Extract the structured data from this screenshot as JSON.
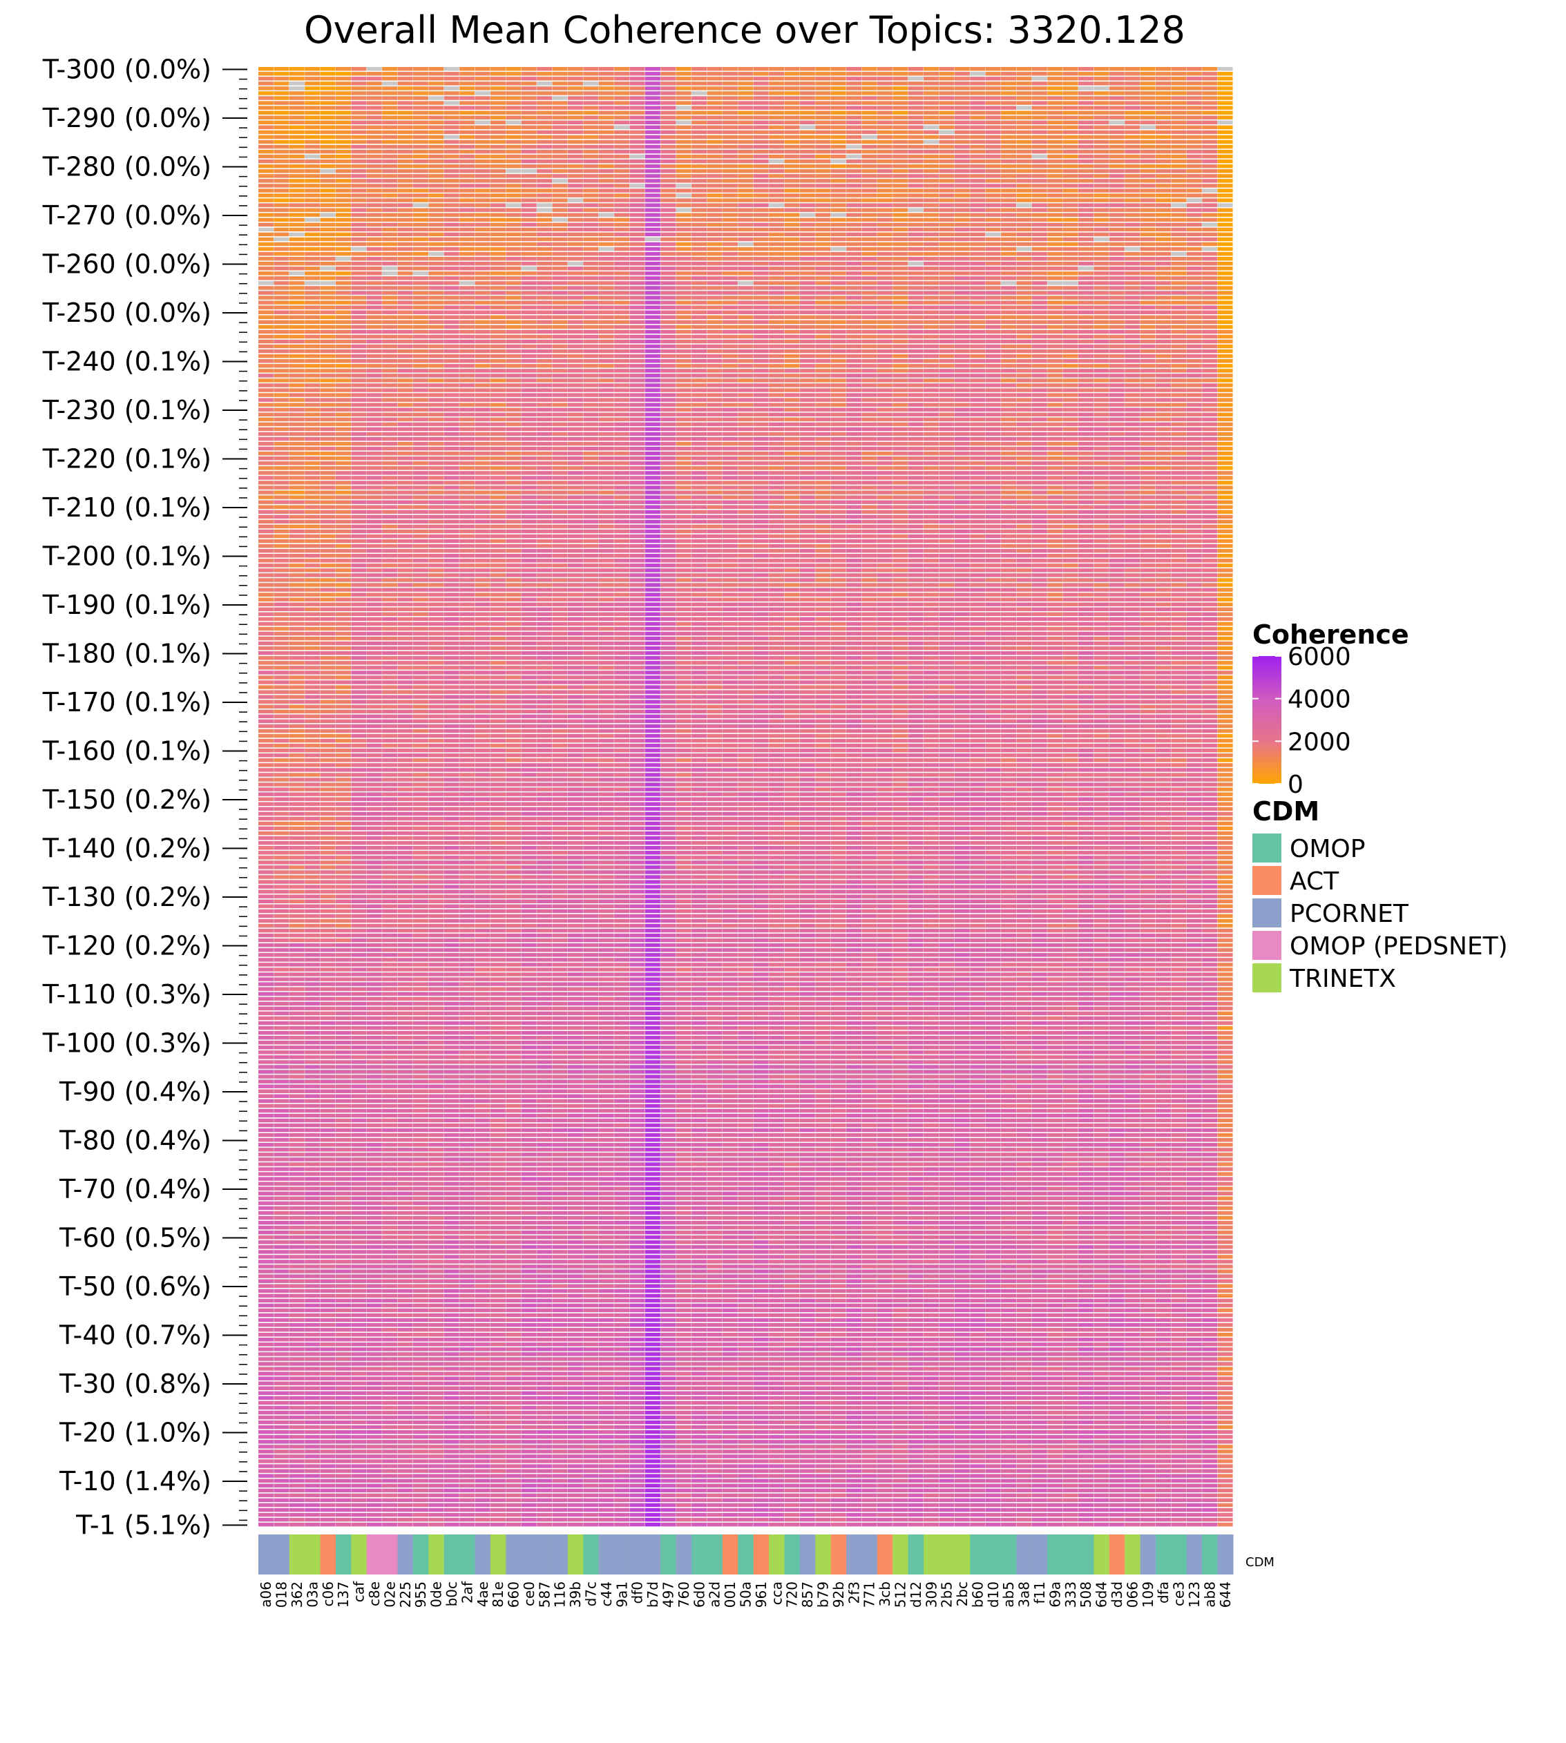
{
  "chart_data": {
    "type": "heatmap",
    "title": "Overall Mean Coherence over Topics: 3320.128",
    "row_labels": [
      {
        "topic": 300,
        "label": "T-300 (0.0%)"
      },
      {
        "topic": 290,
        "label": "T-290 (0.0%)"
      },
      {
        "topic": 280,
        "label": "T-280 (0.0%)"
      },
      {
        "topic": 270,
        "label": "T-270 (0.0%)"
      },
      {
        "topic": 260,
        "label": "T-260 (0.0%)"
      },
      {
        "topic": 250,
        "label": "T-250 (0.0%)"
      },
      {
        "topic": 240,
        "label": "T-240 (0.1%)"
      },
      {
        "topic": 230,
        "label": "T-230 (0.1%)"
      },
      {
        "topic": 220,
        "label": "T-220 (0.1%)"
      },
      {
        "topic": 210,
        "label": "T-210 (0.1%)"
      },
      {
        "topic": 200,
        "label": "T-200 (0.1%)"
      },
      {
        "topic": 190,
        "label": "T-190 (0.1%)"
      },
      {
        "topic": 180,
        "label": "T-180 (0.1%)"
      },
      {
        "topic": 170,
        "label": "T-170 (0.1%)"
      },
      {
        "topic": 160,
        "label": "T-160 (0.1%)"
      },
      {
        "topic": 150,
        "label": "T-150 (0.2%)"
      },
      {
        "topic": 140,
        "label": "T-140 (0.2%)"
      },
      {
        "topic": 130,
        "label": "T-130 (0.2%)"
      },
      {
        "topic": 120,
        "label": "T-120 (0.2%)"
      },
      {
        "topic": 110,
        "label": "T-110 (0.3%)"
      },
      {
        "topic": 100,
        "label": "T-100 (0.3%)"
      },
      {
        "topic": 90,
        "label": "T-90 (0.4%)"
      },
      {
        "topic": 80,
        "label": "T-80 (0.4%)"
      },
      {
        "topic": 70,
        "label": "T-70 (0.4%)"
      },
      {
        "topic": 60,
        "label": "T-60 (0.5%)"
      },
      {
        "topic": 50,
        "label": "T-50 (0.6%)"
      },
      {
        "topic": 40,
        "label": "T-40 (0.7%)"
      },
      {
        "topic": 30,
        "label": "T-30 (0.8%)"
      },
      {
        "topic": 20,
        "label": "T-20 (1.0%)"
      },
      {
        "topic": 10,
        "label": "T-10 (1.4%)"
      },
      {
        "topic": 1,
        "label": "T-1 (5.1%)"
      }
    ],
    "topic_range": [
      1,
      300
    ],
    "columns": [
      {
        "label": "a06",
        "cdm": "PCORNET"
      },
      {
        "label": "018",
        "cdm": "PCORNET"
      },
      {
        "label": "362",
        "cdm": "TRINETX"
      },
      {
        "label": "03a",
        "cdm": "TRINETX"
      },
      {
        "label": "c06",
        "cdm": "ACT"
      },
      {
        "label": "137",
        "cdm": "OMOP"
      },
      {
        "label": "caf",
        "cdm": "TRINETX"
      },
      {
        "label": "c8e",
        "cdm": "OMOP (PEDSNET)"
      },
      {
        "label": "02e",
        "cdm": "OMOP (PEDSNET)"
      },
      {
        "label": "225",
        "cdm": "PCORNET"
      },
      {
        "label": "955",
        "cdm": "OMOP"
      },
      {
        "label": "0de",
        "cdm": "TRINETX"
      },
      {
        "label": "b0c",
        "cdm": "OMOP"
      },
      {
        "label": "2af",
        "cdm": "OMOP"
      },
      {
        "label": "4ae",
        "cdm": "PCORNET"
      },
      {
        "label": "81e",
        "cdm": "TRINETX"
      },
      {
        "label": "660",
        "cdm": "PCORNET"
      },
      {
        "label": "ce0",
        "cdm": "PCORNET"
      },
      {
        "label": "587",
        "cdm": "PCORNET"
      },
      {
        "label": "116",
        "cdm": "PCORNET"
      },
      {
        "label": "39b",
        "cdm": "TRINETX"
      },
      {
        "label": "d7c",
        "cdm": "OMOP"
      },
      {
        "label": "c44",
        "cdm": "PCORNET"
      },
      {
        "label": "9a1",
        "cdm": "PCORNET"
      },
      {
        "label": "df0",
        "cdm": "PCORNET"
      },
      {
        "label": "b7d",
        "cdm": "PCORNET"
      },
      {
        "label": "497",
        "cdm": "OMOP"
      },
      {
        "label": "760",
        "cdm": "PCORNET"
      },
      {
        "label": "6d0",
        "cdm": "OMOP"
      },
      {
        "label": "a2d",
        "cdm": "OMOP"
      },
      {
        "label": "001",
        "cdm": "ACT"
      },
      {
        "label": "50a",
        "cdm": "OMOP"
      },
      {
        "label": "961",
        "cdm": "ACT"
      },
      {
        "label": "cca",
        "cdm": "TRINETX"
      },
      {
        "label": "720",
        "cdm": "OMOP"
      },
      {
        "label": "857",
        "cdm": "PCORNET"
      },
      {
        "label": "b79",
        "cdm": "TRINETX"
      },
      {
        "label": "92b",
        "cdm": "ACT"
      },
      {
        "label": "2f3",
        "cdm": "PCORNET"
      },
      {
        "label": "771",
        "cdm": "PCORNET"
      },
      {
        "label": "3cb",
        "cdm": "ACT"
      },
      {
        "label": "512",
        "cdm": "TRINETX"
      },
      {
        "label": "d12",
        "cdm": "OMOP"
      },
      {
        "label": "309",
        "cdm": "TRINETX"
      },
      {
        "label": "2b5",
        "cdm": "TRINETX"
      },
      {
        "label": "2bc",
        "cdm": "TRINETX"
      },
      {
        "label": "b60",
        "cdm": "OMOP"
      },
      {
        "label": "d10",
        "cdm": "OMOP"
      },
      {
        "label": "ab5",
        "cdm": "OMOP"
      },
      {
        "label": "3a8",
        "cdm": "PCORNET"
      },
      {
        "label": "f11",
        "cdm": "PCORNET"
      },
      {
        "label": "69a",
        "cdm": "OMOP"
      },
      {
        "label": "333",
        "cdm": "OMOP"
      },
      {
        "label": "508",
        "cdm": "OMOP"
      },
      {
        "label": "6d4",
        "cdm": "TRINETX"
      },
      {
        "label": "d3d",
        "cdm": "ACT"
      },
      {
        "label": "066",
        "cdm": "TRINETX"
      },
      {
        "label": "109",
        "cdm": "PCORNET"
      },
      {
        "label": "dfa",
        "cdm": "OMOP"
      },
      {
        "label": "ce3",
        "cdm": "OMOP"
      },
      {
        "label": "123",
        "cdm": "PCORNET"
      },
      {
        "label": "ab8",
        "cdm": "OMOP"
      },
      {
        "label": "644",
        "cdm": "PCORNET"
      }
    ],
    "value_estimates": {
      "overall_mean": 3320.128,
      "typical_low_topics": 3200,
      "typical_high_topics": 1200,
      "peak_column": "b7d",
      "peak_value": 5500,
      "missing_color": "#c8c8c8"
    },
    "colorbar": {
      "title": "Coherence",
      "min": 0,
      "max": 6000,
      "ticks": [
        0,
        2000,
        4000,
        6000
      ],
      "tick_labels": [
        "0",
        "2000",
        "4000",
        "6000"
      ],
      "colors": [
        "#FFA500",
        "#E8758A",
        "#D05BC0",
        "#A020F0"
      ]
    },
    "cdm_annotation_label": "CDM",
    "legend": {
      "title": "CDM",
      "placement": "right",
      "items": [
        {
          "name": "OMOP",
          "color": "#66C2A5"
        },
        {
          "name": "ACT",
          "color": "#FC8D62"
        },
        {
          "name": "PCORNET",
          "color": "#8DA0CB"
        },
        {
          "name": "OMOP (PEDSNET)",
          "color": "#E78AC3"
        },
        {
          "name": "TRINETX",
          "color": "#A6D854"
        }
      ]
    }
  }
}
